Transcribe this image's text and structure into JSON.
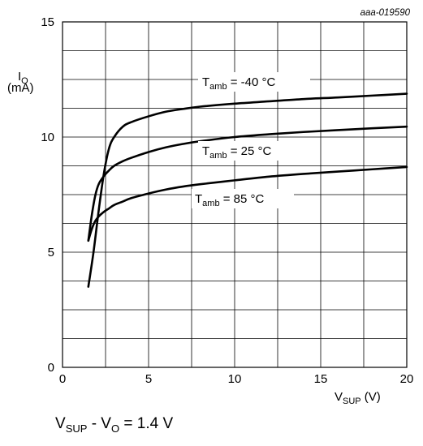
{
  "figure_id": "aaa-019590",
  "footnote": {
    "v_main": "V",
    "v_sub": "SUP",
    "minus": " - V",
    "vo_sub": "O",
    "rest": " = 1.4 V"
  },
  "chart_data": {
    "type": "line",
    "title": "",
    "xlabel": {
      "main": "V",
      "sub": "SUP",
      "unit": " (V)"
    },
    "ylabel": {
      "main": "I",
      "sub": "O",
      "unit": "(mA)"
    },
    "xlim": [
      0,
      20
    ],
    "ylim": [
      0,
      15
    ],
    "x_ticks": [
      0,
      5,
      10,
      15,
      20
    ],
    "y_ticks": [
      0,
      5,
      10,
      15
    ],
    "grid": true,
    "x_grid_step": 2.5,
    "y_grid_step": 1.25,
    "series": [
      {
        "name": "T_amb = -40 °C",
        "label_main": "T",
        "label_sub": "amb",
        "label_rest": " = -40 °C",
        "x": [
          1.5,
          1.8,
          2.1,
          2.4,
          2.7,
          3.0,
          3.5,
          4.0,
          5.0,
          6.0,
          7.0,
          8.0,
          10.0,
          12.0,
          14.0,
          16.0,
          18.0,
          20.0
        ],
        "y": [
          3.5,
          5.0,
          6.8,
          8.4,
          9.5,
          10.0,
          10.45,
          10.65,
          10.9,
          11.1,
          11.22,
          11.32,
          11.45,
          11.55,
          11.65,
          11.72,
          11.8,
          11.88
        ]
      },
      {
        "name": "T_amb = 25 °C",
        "label_main": "T",
        "label_sub": "amb",
        "label_rest": " = 25 °C",
        "x": [
          1.5,
          1.7,
          1.9,
          2.1,
          2.4,
          2.7,
          3.0,
          3.5,
          4.0,
          5.0,
          6.0,
          7.0,
          8.0,
          10.0,
          12.0,
          14.0,
          16.0,
          18.0,
          20.0
        ],
        "y": [
          5.5,
          6.6,
          7.45,
          7.95,
          8.3,
          8.55,
          8.75,
          8.95,
          9.1,
          9.35,
          9.55,
          9.7,
          9.82,
          10.0,
          10.12,
          10.22,
          10.3,
          10.38,
          10.45
        ]
      },
      {
        "name": "T_amb = 85 °C",
        "label_main": "T",
        "label_sub": "amb",
        "label_rest": " = 85 °C",
        "x": [
          1.5,
          1.7,
          1.9,
          2.1,
          2.4,
          2.7,
          3.0,
          3.5,
          4.0,
          5.0,
          6.0,
          7.0,
          8.0,
          10.0,
          12.0,
          14.0,
          16.0,
          18.0,
          20.0
        ],
        "y": [
          5.5,
          6.0,
          6.35,
          6.55,
          6.75,
          6.9,
          7.05,
          7.2,
          7.35,
          7.55,
          7.72,
          7.85,
          7.95,
          8.12,
          8.28,
          8.4,
          8.5,
          8.6,
          8.7
        ]
      }
    ]
  }
}
